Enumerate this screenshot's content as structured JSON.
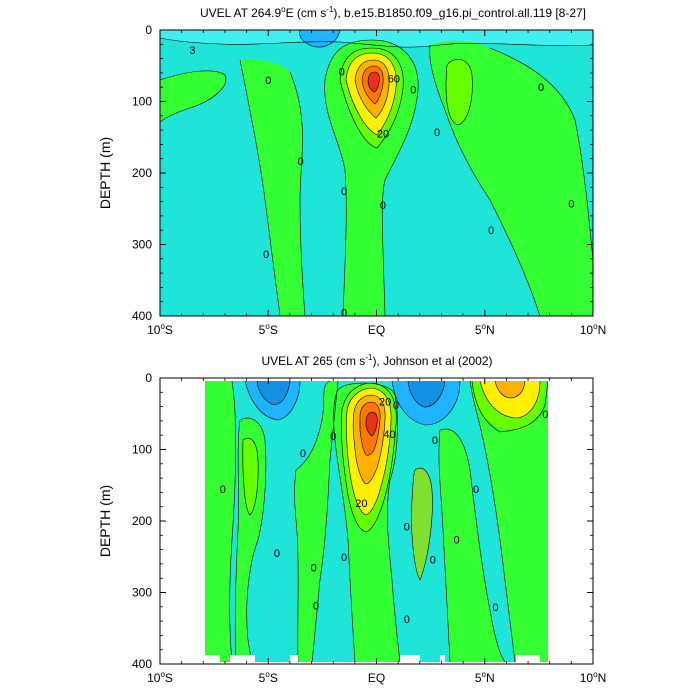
{
  "chart_data": [
    {
      "type": "contour",
      "title_main": "UVEL AT 264.9",
      "title_deg": "o",
      "title_mid": "E (cm s",
      "title_exp": "-1",
      "title_end": "), b.e15.B1850.f09_g16.pi_control.all.119 [8-27]",
      "ylabel": "DEPTH (m)",
      "xlim": [
        -10,
        10
      ],
      "ylim": [
        400,
        0
      ],
      "xticks": [
        {
          "value": -10,
          "num": "10",
          "deg": "o",
          "hemi": "S"
        },
        {
          "value": -5,
          "num": "5",
          "deg": "o",
          "hemi": "S"
        },
        {
          "value": 0,
          "num": "EQ",
          "deg": "",
          "hemi": ""
        },
        {
          "value": 5,
          "num": "5",
          "deg": "o",
          "hemi": "N"
        },
        {
          "value": 10,
          "num": "10",
          "deg": "o",
          "hemi": "N"
        }
      ],
      "yticks": [
        0,
        100,
        200,
        300,
        400
      ],
      "contour_labels": [
        {
          "text": "3",
          "x": -8.5,
          "y": 28
        },
        {
          "text": "0",
          "x": -5.0,
          "y": 70
        },
        {
          "text": "0",
          "x": -3.5,
          "y": 183
        },
        {
          "text": "0",
          "x": -1.6,
          "y": 58
        },
        {
          "text": "0",
          "x": -1.5,
          "y": 225
        },
        {
          "text": "0",
          "x": -5.1,
          "y": 313
        },
        {
          "text": "0",
          "x": -1.5,
          "y": 395
        },
        {
          "text": "60",
          "x": 0.8,
          "y": 68
        },
        {
          "text": "20",
          "x": 0.3,
          "y": 145
        },
        {
          "text": "0",
          "x": 1.7,
          "y": 83
        },
        {
          "text": "0",
          "x": 0.3,
          "y": 245
        },
        {
          "text": "0",
          "x": 2.8,
          "y": 143
        },
        {
          "text": "0",
          "x": 5.3,
          "y": 280
        },
        {
          "text": "0",
          "x": 7.6,
          "y": 80
        },
        {
          "text": "0",
          "x": 9.0,
          "y": 243
        }
      ]
    },
    {
      "type": "contour",
      "title_main": "UVEL AT 265 (cm s",
      "title_exp": "-1",
      "title_end": "), Johnson et al (2002)",
      "ylabel": "DEPTH (m)",
      "xlim": [
        -10,
        10
      ],
      "ylim": [
        400,
        0
      ],
      "xticks": [
        {
          "value": -10,
          "num": "10",
          "deg": "o",
          "hemi": "S"
        },
        {
          "value": -5,
          "num": "5",
          "deg": "o",
          "hemi": "S"
        },
        {
          "value": 0,
          "num": "EQ",
          "deg": "",
          "hemi": ""
        },
        {
          "value": 5,
          "num": "5",
          "deg": "o",
          "hemi": "N"
        },
        {
          "value": 10,
          "num": "10",
          "deg": "o",
          "hemi": "N"
        }
      ],
      "yticks": [
        0,
        100,
        200,
        300,
        400
      ],
      "contour_labels": [
        {
          "text": "0",
          "x": -7.1,
          "y": 155
        },
        {
          "text": "0",
          "x": -8.8,
          "y": 265
        },
        {
          "text": "0",
          "x": -4.6,
          "y": 245
        },
        {
          "text": "0",
          "x": -3.4,
          "y": 105
        },
        {
          "text": "0",
          "x": -2.0,
          "y": 81
        },
        {
          "text": "0",
          "x": -2.9,
          "y": 265
        },
        {
          "text": "0",
          "x": -2.8,
          "y": 318
        },
        {
          "text": "0",
          "x": -1.5,
          "y": 250
        },
        {
          "text": "20",
          "x": 0.4,
          "y": 33
        },
        {
          "text": "40",
          "x": 0.6,
          "y": 78
        },
        {
          "text": "0",
          "x": 0.9,
          "y": 38
        },
        {
          "text": "20",
          "x": -0.7,
          "y": 175
        },
        {
          "text": "0",
          "x": 1.4,
          "y": 208
        },
        {
          "text": "0",
          "x": 1.4,
          "y": 337
        },
        {
          "text": "0",
          "x": 2.7,
          "y": 87
        },
        {
          "text": "0",
          "x": 2.6,
          "y": 254
        },
        {
          "text": "0",
          "x": 3.7,
          "y": 226
        },
        {
          "text": "0",
          "x": 4.6,
          "y": 155
        },
        {
          "text": "0",
          "x": 5.5,
          "y": 320
        },
        {
          "text": "0",
          "x": 7.8,
          "y": 50
        }
      ]
    }
  ],
  "colors": {
    "light_cyan": "#40f0f0",
    "cyan": "#1fe5d8",
    "green": "#33ff33",
    "lime": "#66ff00",
    "yellow": "#fff000",
    "orange": "#ffb000",
    "dark_orange": "#ff7700",
    "red": "#e8321e",
    "blue1": "#1eb4ff",
    "blue2": "#1490e0",
    "green_dark": "#80e030"
  }
}
